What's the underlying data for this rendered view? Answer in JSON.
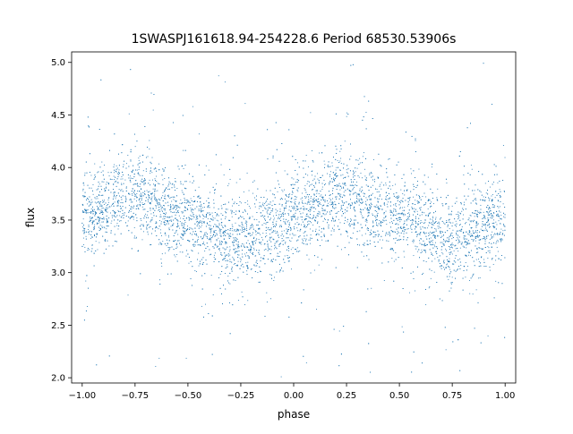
{
  "chart_data": {
    "type": "scatter",
    "title": "1SWASPJ161618.94-254228.6 Period 68530.53906s",
    "xlabel": "phase",
    "ylabel": "flux",
    "xlim": [
      -1.05,
      1.05
    ],
    "ylim": [
      1.95,
      5.1
    ],
    "xticks": [
      -1.0,
      -0.75,
      -0.5,
      -0.25,
      0.0,
      0.25,
      0.5,
      0.75,
      1.0
    ],
    "xtick_labels": [
      "−1.00",
      "−0.75",
      "−0.50",
      "−0.25",
      "0.00",
      "0.25",
      "0.50",
      "0.75",
      "1.00"
    ],
    "yticks": [
      2.0,
      2.5,
      3.0,
      3.5,
      4.0,
      4.5,
      5.0
    ],
    "ytick_labels": [
      "2.0",
      "2.5",
      "3.0",
      "3.5",
      "4.0",
      "4.5",
      "5.0"
    ],
    "grid": false,
    "point_color": "#1f77b4",
    "series": [
      {
        "x_range": [
          -1.0,
          1.0
        ],
        "trend": [
          {
            "x": -1.0,
            "y": 3.55
          },
          {
            "x": -0.75,
            "y": 3.75
          },
          {
            "x": -0.5,
            "y": 3.5
          },
          {
            "x": -0.25,
            "y": 3.3
          },
          {
            "x": 0.0,
            "y": 3.5
          },
          {
            "x": 0.25,
            "y": 3.75
          },
          {
            "x": 0.5,
            "y": 3.5
          },
          {
            "x": 0.75,
            "y": 3.3
          },
          {
            "x": 1.0,
            "y": 3.5
          }
        ],
        "scatter_sd": 0.2,
        "outlier_range": [
          2.0,
          5.0
        ],
        "n_points": 7000
      }
    ]
  }
}
